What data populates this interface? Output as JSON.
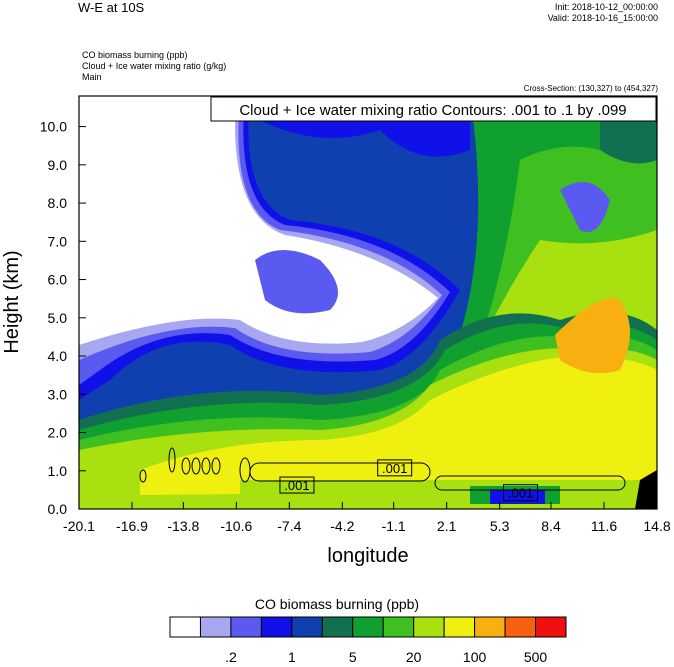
{
  "header": {
    "title": "W-E at 10S",
    "init": "Init: 2018-10-12_00:00:00",
    "valid": "Valid: 2018-10-16_15:00:00",
    "fields": [
      "CO biomass burning   (ppb)",
      "Cloud + Ice water mixing ratio   (g/kg)",
      "Main"
    ],
    "cross_section": "Cross-Section: (130,327) to (454,327)"
  },
  "colors": {
    "levels": [
      "#ffffff",
      "#a8a8f0",
      "#5a5af0",
      "#1010e8",
      "#1040b0",
      "#107050",
      "#10a030",
      "#40c020",
      "#a8e010",
      "#f0f010",
      "#f8b010",
      "#f86010",
      "#f01010"
    ]
  },
  "chart_data": {
    "type": "heatmap",
    "title": "Cloud + Ice water mixing ratio Contours: .001 to .1 by .099",
    "xlabel": "longitude",
    "ylabel": "Height (km)",
    "xlim": [
      -20.1,
      14.8
    ],
    "ylim": [
      0.0,
      10.8
    ],
    "x_ticks": [
      "-20.1",
      "-16.9",
      "-13.8",
      "-10.6",
      "-7.4",
      "-4.2",
      "-1.1",
      "2.1",
      "5.3",
      "8.4",
      "11.6",
      "14.8"
    ],
    "y_ticks": [
      "0.0",
      "1.0",
      "2.0",
      "3.0",
      "4.0",
      "5.0",
      "6.0",
      "7.0",
      "8.0",
      "9.0",
      "10.0"
    ],
    "contour_labels": [
      {
        "text": ".001",
        "lon": -7.0,
        "height": 0.6
      },
      {
        "text": ".001",
        "lon": -1.1,
        "height": 1.05
      },
      {
        "text": ".001",
        "lon": 6.5,
        "height": 0.4
      }
    ],
    "colorbar": {
      "title": "CO biomass burning  (ppb)",
      "tick_labels": [
        ".2",
        "1",
        "5",
        "20",
        "100",
        "500"
      ]
    }
  }
}
